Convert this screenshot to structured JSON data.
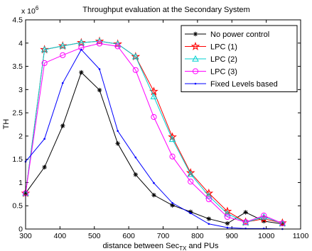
{
  "chart_data": {
    "type": "line",
    "title": "Throughput evaluation at the Secondary System",
    "ylabel": "TH",
    "xlabel_prefix": "distance between Sec",
    "xlabel_sub": "TX",
    "xlabel_suffix": " and PUs",
    "y_multiplier_base": "x 10",
    "y_multiplier_exp": "6",
    "xlim": [
      300,
      1100
    ],
    "ylim": [
      0,
      4.5
    ],
    "x_ticks": [
      300,
      400,
      500,
      600,
      700,
      800,
      900,
      1000,
      1100
    ],
    "x_tick_labels": [
      "300",
      "400",
      "500",
      "600",
      "700",
      "800",
      "900",
      "1000",
      "1100"
    ],
    "y_ticks": [
      0,
      0.5,
      1,
      1.5,
      2,
      2.5,
      3,
      3.5,
      4,
      4.5
    ],
    "y_tick_labels": [
      "0",
      "0.5",
      "1",
      "1.5",
      "2",
      "2.5",
      "3",
      "3.5",
      "4",
      "4.5"
    ],
    "grid": false,
    "legend_position": "top-right",
    "series": [
      {
        "name": "No power control",
        "color": "#000000",
        "marker": "star",
        "x": [
          300,
          355,
          408,
          462,
          515,
          568,
          620,
          673,
          727,
          780,
          833,
          887,
          940,
          993,
          1047
        ],
        "y": [
          0.77,
          1.33,
          2.22,
          3.37,
          2.99,
          1.84,
          1.17,
          0.73,
          0.51,
          0.37,
          0.22,
          0.12,
          0.36,
          0.17,
          0.11
        ]
      },
      {
        "name": "LPC (1)",
        "color": "#ff0000",
        "marker": "pentagram",
        "x": [
          300,
          355,
          408,
          462,
          515,
          568,
          620,
          673,
          727,
          780,
          833,
          887,
          940,
          993,
          1047
        ],
        "y": [
          0.77,
          3.86,
          3.94,
          4.01,
          4.04,
          3.98,
          3.71,
          2.96,
          1.98,
          1.21,
          0.77,
          0.38,
          0.15,
          0.22,
          0.13
        ]
      },
      {
        "name": "LPC (2)",
        "color": "#00d0d0",
        "marker": "triangle",
        "x": [
          300,
          355,
          408,
          462,
          515,
          568,
          620,
          673,
          727,
          780,
          833,
          887,
          940,
          993,
          1047
        ],
        "y": [
          0.77,
          3.86,
          3.94,
          4.01,
          4.04,
          3.98,
          3.71,
          2.85,
          1.93,
          1.18,
          0.71,
          0.33,
          0.14,
          0.26,
          0.12
        ]
      },
      {
        "name": "LPC (3)",
        "color": "#ff00ff",
        "marker": "circle",
        "x": [
          300,
          355,
          408,
          462,
          515,
          568,
          620,
          673,
          727,
          780,
          833,
          887,
          940,
          993,
          1047
        ],
        "y": [
          0.77,
          3.57,
          3.74,
          3.9,
          3.99,
          3.93,
          3.42,
          2.41,
          1.56,
          1.02,
          0.64,
          0.26,
          0.15,
          0.29,
          0.12
        ]
      },
      {
        "name": "Fixed Levels based",
        "color": "#0000ff",
        "marker": "point",
        "x": [
          300,
          355,
          408,
          462,
          515,
          568,
          620,
          673,
          727,
          780,
          833,
          887,
          940,
          993,
          1047
        ],
        "y": [
          1.45,
          1.94,
          3.14,
          3.86,
          3.44,
          2.11,
          1.54,
          0.99,
          0.56,
          0.34,
          0.11,
          0.03,
          0.01,
          0.01,
          0.0
        ]
      }
    ]
  }
}
